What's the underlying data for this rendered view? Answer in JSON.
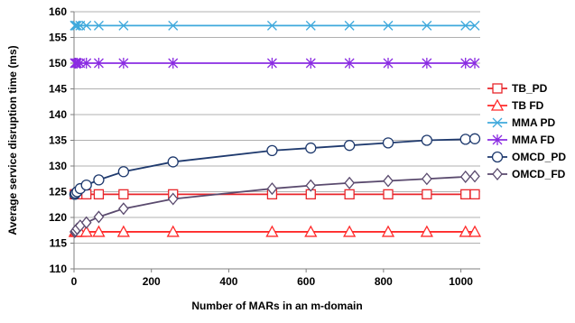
{
  "chart_data": {
    "type": "line",
    "title": "",
    "xlabel": "Number of MARs in an m-domain",
    "ylabel": "Average service disruption time (ms)",
    "xlim": [
      0,
      1050
    ],
    "ylim": [
      110,
      160
    ],
    "xticks": [
      0,
      200,
      400,
      600,
      800,
      1000
    ],
    "yticks": [
      110,
      115,
      120,
      125,
      130,
      135,
      140,
      145,
      150,
      155,
      160
    ],
    "grid": "horizontal",
    "legend_position": "right",
    "x": [
      2,
      4,
      8,
      16,
      32,
      64,
      128,
      256,
      512,
      612,
      712,
      812,
      912,
      1012,
      1036
    ],
    "series": [
      {
        "name": "TB_PD",
        "color": "#e8262b",
        "marker": "square",
        "values": [
          124.5,
          124.5,
          124.5,
          124.5,
          124.5,
          124.5,
          124.5,
          124.5,
          124.5,
          124.5,
          124.5,
          124.5,
          124.5,
          124.5,
          124.5
        ]
      },
      {
        "name": "TB FD",
        "color": "#ff2a2a",
        "marker": "triangle",
        "values": [
          117.2,
          117.2,
          117.2,
          117.2,
          117.2,
          117.2,
          117.2,
          117.2,
          117.2,
          117.2,
          117.2,
          117.2,
          117.2,
          117.2,
          117.2
        ]
      },
      {
        "name": "MMA PD",
        "color": "#3fa9dc",
        "marker": "x",
        "values": [
          157.3,
          157.3,
          157.3,
          157.3,
          157.3,
          157.3,
          157.3,
          157.3,
          157.3,
          157.3,
          157.3,
          157.3,
          157.3,
          157.3,
          157.3
        ]
      },
      {
        "name": "MMA FD",
        "color": "#8a2be2",
        "marker": "star",
        "values": [
          150.0,
          150.0,
          150.0,
          150.0,
          150.0,
          150.0,
          150.0,
          150.0,
          150.0,
          150.0,
          150.0,
          150.0,
          150.0,
          150.0,
          150.0
        ]
      },
      {
        "name": "OMCD_PD",
        "color": "#1f3a6e",
        "marker": "circle",
        "values": [
          124.5,
          124.7,
          125.0,
          125.6,
          126.3,
          127.3,
          128.9,
          130.8,
          133.0,
          133.5,
          134.0,
          134.5,
          135.0,
          135.2,
          135.3
        ]
      },
      {
        "name": "OMCD_FD",
        "color": "#5a4a6e",
        "marker": "diamond",
        "values": [
          117.2,
          117.4,
          117.8,
          118.4,
          119.0,
          120.1,
          121.7,
          123.6,
          125.6,
          126.2,
          126.7,
          127.1,
          127.5,
          127.9,
          128.0
        ]
      }
    ]
  }
}
